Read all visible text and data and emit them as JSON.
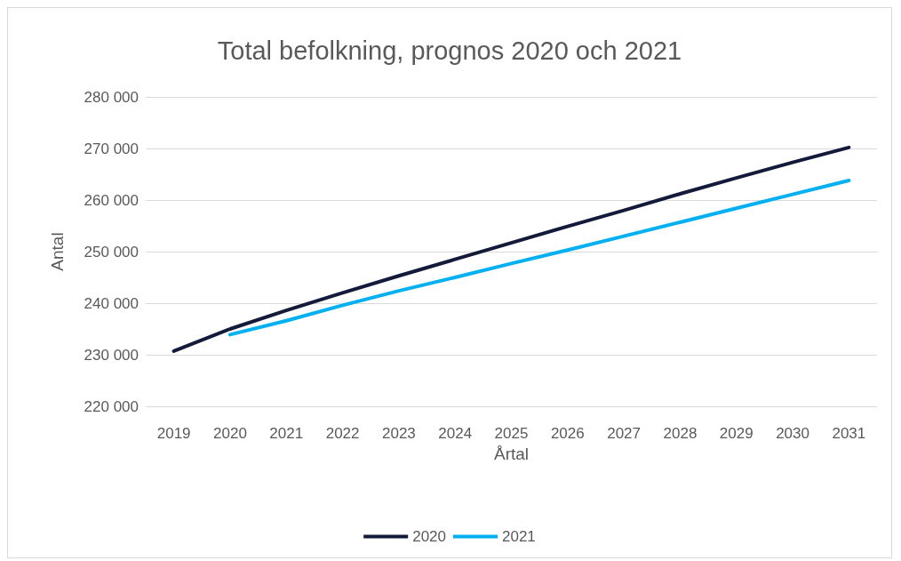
{
  "chart_data": {
    "type": "line",
    "title": "Total befolkning, prognos 2020 och 2021",
    "xlabel": "Årtal",
    "ylabel": "Antal",
    "categories": [
      "2019",
      "2020",
      "2021",
      "2022",
      "2023",
      "2024",
      "2025",
      "2026",
      "2027",
      "2028",
      "2029",
      "2030",
      "2031"
    ],
    "series": [
      {
        "name": "2020",
        "color": "#141a3a",
        "values": [
          230700,
          235000,
          238600,
          242000,
          245300,
          248500,
          251700,
          254900,
          258000,
          261200,
          264300,
          267300,
          270200
        ]
      },
      {
        "name": "2021",
        "color": "#00b0f0",
        "values": [
          null,
          233900,
          236600,
          239600,
          242400,
          245000,
          247700,
          250300,
          253000,
          255700,
          258400,
          261100,
          263800
        ]
      }
    ],
    "ylim": [
      220000,
      280000
    ],
    "yticks": [
      220000,
      230000,
      240000,
      250000,
      260000,
      270000,
      280000
    ],
    "grid": "y",
    "legend": "bottom",
    "marker": "none",
    "line_style": "solid"
  }
}
